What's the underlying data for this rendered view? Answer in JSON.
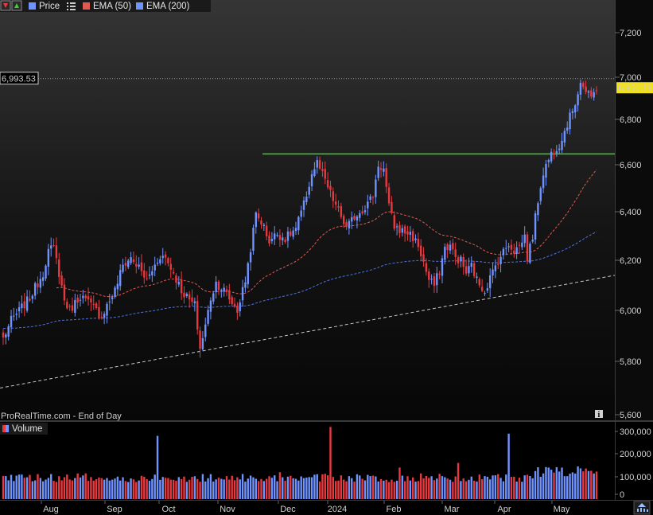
{
  "legend": {
    "price": "Price",
    "ema50": "EMA (50)",
    "ema200": "EMA (200)",
    "volume": "Volume"
  },
  "watermark": "ProRealTime.com - End of Day",
  "info_glyph": "i",
  "colors": {
    "up": "#6f93ff",
    "down": "#e8393f",
    "ema50": "#e05a50",
    "ema200": "#4f74e0",
    "resistance": "#39d12b",
    "support": "#c8c8c8",
    "background": "#000000",
    "last_price_bg": "#f0e020"
  },
  "price_axis": {
    "ticks": [
      "7,200",
      "7,000",
      "6,800",
      "6,600",
      "6,400",
      "6,200",
      "6,000",
      "5,800",
      "5,600"
    ],
    "tick_values": [
      7200,
      7000,
      6800,
      6600,
      6400,
      6200,
      6000,
      5800,
      5600
    ]
  },
  "volume_axis": {
    "ticks": [
      "300,000",
      "200,000",
      "100,000",
      "0"
    ],
    "tick_values": [
      300000,
      200000,
      100000,
      0
    ]
  },
  "time_axis": {
    "months": [
      "Aug",
      "Sep",
      "Oct",
      "Nov",
      "Dec",
      "2024",
      "Feb",
      "Mar",
      "Apr",
      "May"
    ]
  },
  "price_tags": {
    "high": "6,993.53",
    "high_value": 6993.53,
    "last": "6,950.11",
    "last_value": 6950.11
  },
  "chart_data": {
    "type": "candlestick",
    "period": "daily, Jul 2023 - May 2024",
    "resistance_level": 6648,
    "support_line": {
      "from": {
        "date": "Jul 2023",
        "value": 5700
      },
      "to": {
        "date": "May 2024",
        "value": 6140
      }
    },
    "series": [
      {
        "name": "Price",
        "knots": [
          [
            0,
            5890
          ],
          [
            3,
            5960
          ],
          [
            10,
            6050
          ],
          [
            15,
            6150
          ],
          [
            17,
            6240
          ],
          [
            19,
            6250
          ],
          [
            21,
            6150
          ],
          [
            23,
            6040
          ],
          [
            25,
            6000
          ],
          [
            29,
            6060
          ],
          [
            33,
            6020
          ],
          [
            37,
            5980
          ],
          [
            42,
            6080
          ],
          [
            45,
            6180
          ],
          [
            48,
            6210
          ],
          [
            51,
            6170
          ],
          [
            54,
            6120
          ],
          [
            57,
            6180
          ],
          [
            59,
            6220
          ],
          [
            61,
            6210
          ],
          [
            64,
            6150
          ],
          [
            67,
            6080
          ],
          [
            70,
            6040
          ],
          [
            72,
            6020
          ],
          [
            74,
            5850
          ],
          [
            76,
            5940
          ],
          [
            78,
            6050
          ],
          [
            80,
            6110
          ],
          [
            83,
            6080
          ],
          [
            86,
            6030
          ],
          [
            88,
            6000
          ],
          [
            91,
            6120
          ],
          [
            93,
            6250
          ],
          [
            95,
            6390
          ],
          [
            97,
            6360
          ],
          [
            100,
            6280
          ],
          [
            103,
            6310
          ],
          [
            106,
            6290
          ],
          [
            110,
            6330
          ],
          [
            113,
            6430
          ],
          [
            116,
            6560
          ],
          [
            118,
            6610
          ],
          [
            121,
            6530
          ],
          [
            124,
            6450
          ],
          [
            127,
            6380
          ],
          [
            129,
            6330
          ],
          [
            132,
            6380
          ],
          [
            136,
            6420
          ],
          [
            139,
            6470
          ],
          [
            141,
            6600
          ],
          [
            143,
            6580
          ],
          [
            145,
            6420
          ],
          [
            147,
            6340
          ],
          [
            150,
            6320
          ],
          [
            153,
            6310
          ],
          [
            156,
            6260
          ],
          [
            158,
            6190
          ],
          [
            160,
            6120
          ],
          [
            162,
            6100
          ],
          [
            164,
            6160
          ],
          [
            166,
            6250
          ],
          [
            168,
            6260
          ],
          [
            170,
            6210
          ],
          [
            172,
            6200
          ],
          [
            174,
            6150
          ],
          [
            176,
            6180
          ],
          [
            178,
            6120
          ],
          [
            181,
            6080
          ],
          [
            183,
            6130
          ],
          [
            186,
            6200
          ],
          [
            190,
            6270
          ],
          [
            192,
            6240
          ],
          [
            194,
            6260
          ],
          [
            196,
            6300
          ],
          [
            197,
            6210
          ],
          [
            199,
            6300
          ],
          [
            201,
            6450
          ],
          [
            203,
            6570
          ],
          [
            206,
            6650
          ],
          [
            209,
            6690
          ],
          [
            212,
            6780
          ],
          [
            215,
            6880
          ],
          [
            217,
            6980
          ],
          [
            219,
            6930
          ],
          [
            221,
            6900
          ],
          [
            223,
            6950
          ]
        ],
        "total_bars": 224
      },
      {
        "name": "EMA (50)"
      },
      {
        "name": "EMA (200)"
      },
      {
        "name": "Volume"
      }
    ],
    "ylim": [
      5600,
      7300
    ],
    "volume_ylim": [
      0,
      330000
    ]
  }
}
